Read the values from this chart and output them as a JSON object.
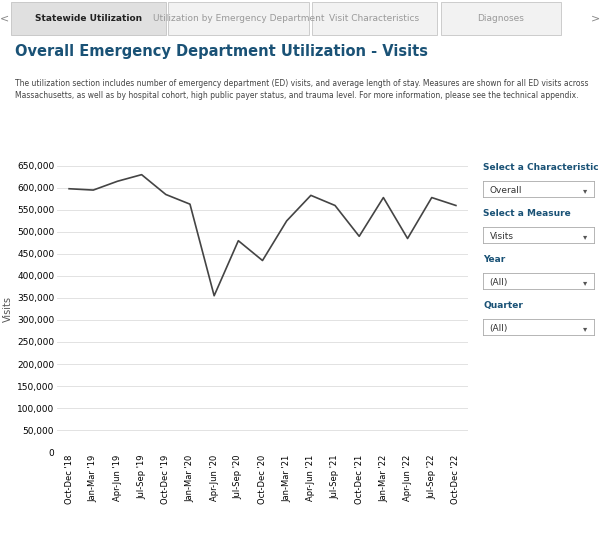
{
  "title": "Overall Emergency Department Utilization - Visits",
  "subtitle": "The utilization section includes number of emergency department (ED) visits, and average length of stay. Measures are shown for all ED visits across\nMassachusetts, as well as by hospital cohort, high public payer status, and trauma level. For more information, please see the technical appendix.",
  "ylabel": "Visits",
  "background_color": "#ffffff",
  "tab_labels": [
    "Statewide Utilization",
    "Utilization by Emergency Department",
    "Visit Characteristics",
    "Diagnoses"
  ],
  "tab_active": 0,
  "x_labels": [
    "Oct-Dec '18",
    "Jan-Mar '19",
    "Apr-Jun '19",
    "Jul-Sep '19",
    "Oct-Dec '19",
    "Jan-Mar '20",
    "Apr-Jun '20",
    "Jul-Sep '20",
    "Oct-Dec '20",
    "Jan-Mar '21",
    "Apr-Jun '21",
    "Jul-Sep '21",
    "Oct-Dec '21",
    "Jan-Mar '22",
    "Apr-Jun '22",
    "Jul-Sep '22",
    "Oct-Dec '22"
  ],
  "y_values": [
    598000,
    595000,
    615000,
    630000,
    585000,
    563000,
    355000,
    480000,
    435000,
    525000,
    583000,
    560000,
    490000,
    578000,
    485000,
    578000,
    560000
  ],
  "ylim": [
    0,
    650000
  ],
  "yticks": [
    0,
    50000,
    100000,
    150000,
    200000,
    250000,
    300000,
    350000,
    400000,
    450000,
    500000,
    550000,
    600000,
    650000
  ],
  "line_color": "#444444",
  "line_width": 1.2,
  "grid_color": "#dddddd",
  "sidebar_labels": [
    "Select a Characteristic",
    "Select a Measure",
    "Year",
    "Quarter"
  ],
  "sidebar_values": [
    "Overall",
    "Visits",
    "(All)",
    "(All)"
  ],
  "sidebar_color": "#1a5276",
  "title_color": "#1a5276",
  "tab_bg_active": "#e0e0e0",
  "tab_bg_inactive": "#f2f2f2",
  "tab_text_active": "#222222",
  "tab_text_inactive": "#999999",
  "tab_bar_bg": "#ebebeb",
  "tick_label_fontsize": 6.0,
  "ytick_label_fontsize": 6.5
}
